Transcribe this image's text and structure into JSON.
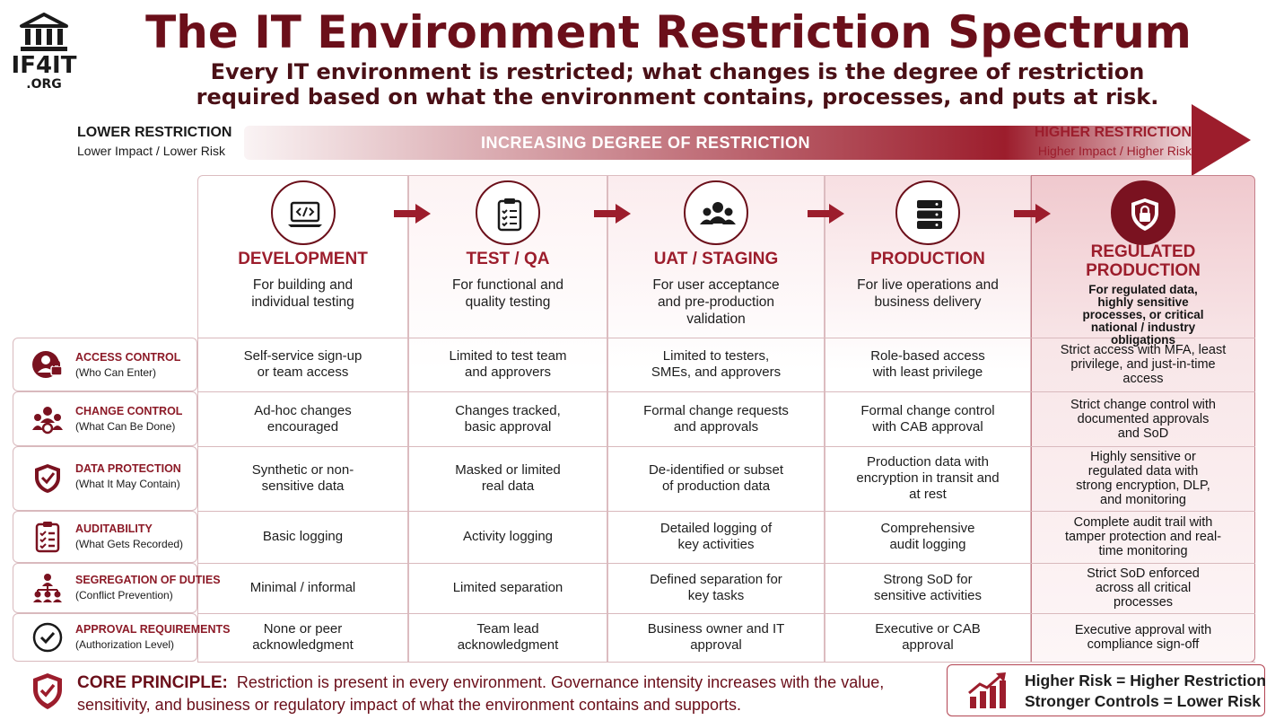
{
  "logo": {
    "name": "IF4IT",
    "suffix": ".ORG",
    "icon": "building-columns-icon"
  },
  "title": "The IT Environment Restriction Spectrum",
  "subtitle_line1": "Every IT environment is restricted; what changes is the degree of restriction",
  "subtitle_line2": "required based on what the environment contains, processes, and puts at risk.",
  "spectrum": {
    "low_title": "LOWER RESTRICTION",
    "low_sub": "Lower Impact / Lower Risk",
    "high_title": "HIGHER RESTRICTION",
    "high_sub": "Higher Impact / Higher Risk",
    "arrow_label": "INCREASING DEGREE OF RESTRICTION"
  },
  "colors": {
    "brand": "#9c1d2c",
    "dark": "#6b0f1a"
  },
  "environments": [
    {
      "name": "DEVELOPMENT",
      "desc": "For building and individual testing",
      "icon": "laptop-code-icon"
    },
    {
      "name": "TEST / QA",
      "desc": "For functional and quality testing",
      "icon": "clipboard-checklist-icon"
    },
    {
      "name": "UAT / STAGING",
      "desc": "For user acceptance and pre-production validation",
      "icon": "users-group-icon"
    },
    {
      "name": "PRODUCTION",
      "desc": "For live operations and business delivery",
      "icon": "server-icon"
    },
    {
      "name": "REGULATED PRODUCTION",
      "desc": "For regulated data, highly sensitive processes, or critical national / industry obligations",
      "icon": "shield-lock-icon"
    }
  ],
  "controls": [
    {
      "title": "ACCESS CONTROL",
      "sub": "(Who Can Enter)",
      "icon": "user-lock-icon",
      "values": [
        "Self-service sign-up or team access",
        "Limited to test team and approvers",
        "Limited to testers, SMEs, and approvers",
        "Role-based access with least privilege",
        "Strict access with MFA, least privilege, and just-in-time access"
      ]
    },
    {
      "title": "CHANGE CONTROL",
      "sub": "(What Can Be Done)",
      "icon": "people-gear-icon",
      "values": [
        "Ad-hoc changes encouraged",
        "Changes tracked, basic approval",
        "Formal change requests and approvals",
        "Formal change control with CAB approval",
        "Strict change control with documented approvals and SoD"
      ]
    },
    {
      "title": "DATA PROTECTION",
      "sub": "(What It May Contain)",
      "icon": "shield-check-icon",
      "values": [
        "Synthetic or non-sensitive data",
        "Masked or limited real data",
        "De-identified or subset of production data",
        "Production data with encryption in transit and at rest",
        "Highly sensitive or regulated data with strong encryption, DLP, and monitoring"
      ]
    },
    {
      "title": "AUDITABILITY",
      "sub": "(What Gets Recorded)",
      "icon": "checklist-icon",
      "values": [
        "Basic logging",
        "Activity logging",
        "Detailed logging of key activities",
        "Comprehensive audit logging",
        "Complete audit trail with tamper protection and real-time monitoring"
      ]
    },
    {
      "title": "SEGREGATION OF DUTIES",
      "sub": "(Conflict Prevention)",
      "icon": "people-hierarchy-icon",
      "values": [
        "Minimal / informal",
        "Limited separation",
        "Defined separation for key tasks",
        "Strong SoD for sensitive activities",
        "Strict SoD enforced across all critical processes"
      ]
    },
    {
      "title": "APPROVAL REQUIREMENTS",
      "sub": "(Authorization Level)",
      "icon": "check-circle-icon",
      "values": [
        "None or peer acknowledgment",
        "Team lead acknowledgment",
        "Business owner and IT approval",
        "Executive or CAB approval",
        "Executive approval with compliance sign-off"
      ]
    }
  ],
  "core_principle": {
    "label": "CORE PRINCIPLE:",
    "line1": "Restriction is present in every environment. Governance intensity increases with the value,",
    "line2": "sensitivity, and business or regulatory impact of what the environment contains and supports.",
    "icon": "shield-check-icon"
  },
  "summary_box": {
    "line1": "Higher Risk = Higher Restriction",
    "line2": "Stronger Controls = Lower Risk",
    "icon": "trend-up-chart-icon"
  }
}
